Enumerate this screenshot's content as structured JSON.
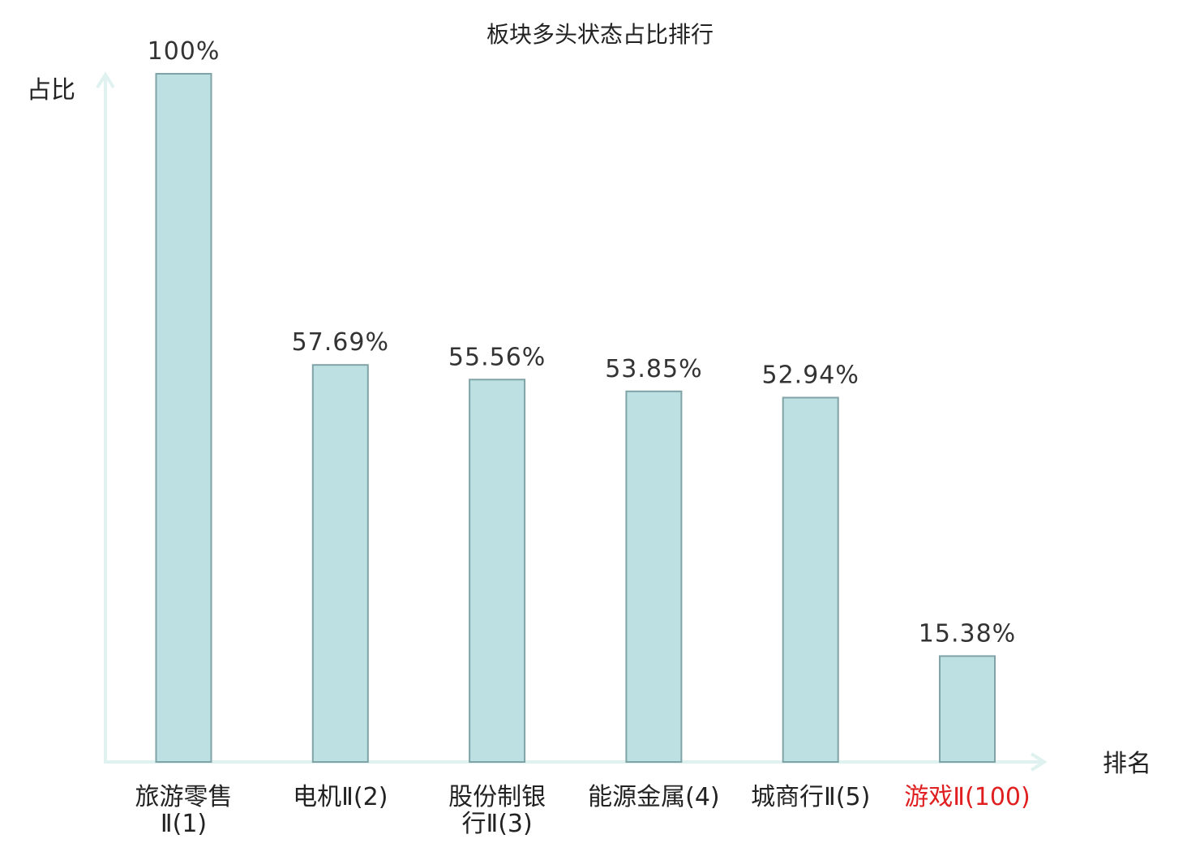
{
  "chart_data": {
    "type": "bar",
    "title": "板块多头状态占比排行",
    "ylabel": "占比",
    "xlabel": "排名",
    "ylim": [
      0,
      100
    ],
    "grid": false,
    "legend": "none",
    "categories": [
      [
        "旅游零售",
        "Ⅱ(1)"
      ],
      [
        "电机Ⅱ(2)"
      ],
      [
        "股份制银",
        "行Ⅱ(3)"
      ],
      [
        "能源金属(4)"
      ],
      [
        "城商行Ⅱ(5)"
      ],
      [
        "游戏Ⅱ(100)"
      ]
    ],
    "values": [
      100,
      57.69,
      55.56,
      53.85,
      52.94,
      15.38
    ],
    "value_labels": [
      "100%",
      "57.69%",
      "55.56%",
      "53.85%",
      "52.94%",
      "15.38%"
    ],
    "highlight_index": 5
  },
  "colors": {
    "bar_fill": "#bde0e3",
    "bar_stroke": "#7fa3a6",
    "axis": "#dff2ef",
    "text": "#222222",
    "highlight": "#e02020"
  }
}
